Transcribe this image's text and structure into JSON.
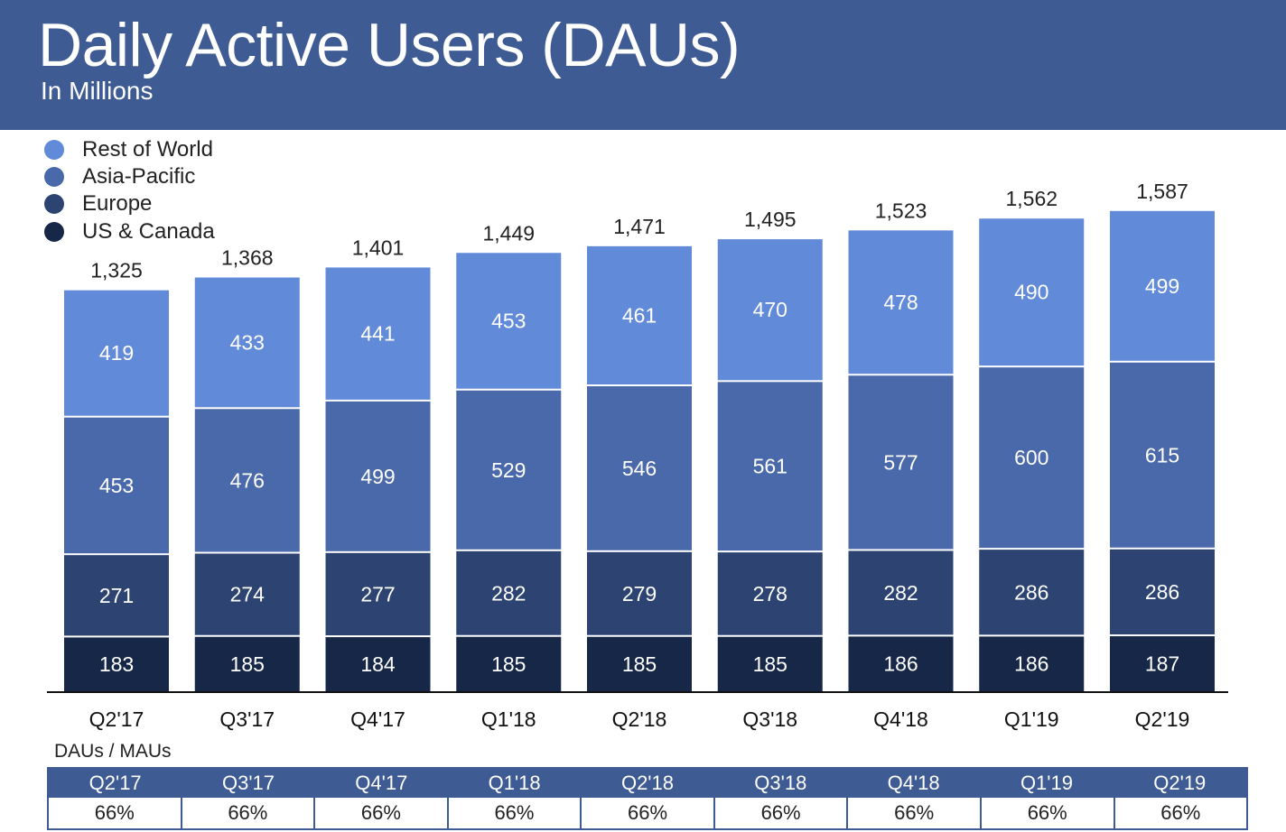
{
  "header": {
    "title": "Daily Active Users (DAUs)",
    "subtitle": "In Millions"
  },
  "colors": {
    "header_bg": "#3f5b93",
    "rest_of_world": "#618ad9",
    "asia_pacific": "#4a69aa",
    "europe": "#2d4372",
    "us_canada": "#172748"
  },
  "chart_data": {
    "type": "bar",
    "stacked": true,
    "title": "Daily Active Users (DAUs)",
    "subtitle": "In Millions",
    "legend_position": "top-left",
    "categories": [
      "Q2'17",
      "Q3'17",
      "Q4'17",
      "Q1'18",
      "Q2'18",
      "Q3'18",
      "Q4'18",
      "Q1'19",
      "Q2'19"
    ],
    "series": [
      {
        "name": "US & Canada",
        "color": "#172748",
        "values": [
          183,
          185,
          184,
          185,
          185,
          185,
          186,
          186,
          187
        ]
      },
      {
        "name": "Europe",
        "color": "#2d4372",
        "values": [
          271,
          274,
          277,
          282,
          279,
          278,
          282,
          286,
          286
        ]
      },
      {
        "name": "Asia-Pacific",
        "color": "#4a69aa",
        "values": [
          453,
          476,
          499,
          529,
          546,
          561,
          577,
          600,
          615
        ]
      },
      {
        "name": "Rest of World",
        "color": "#618ad9",
        "values": [
          419,
          433,
          441,
          453,
          461,
          470,
          478,
          490,
          499
        ]
      }
    ],
    "totals": [
      "1,325",
      "1,368",
      "1,401",
      "1,449",
      "1,471",
      "1,495",
      "1,523",
      "1,562",
      "1,587"
    ],
    "legend_order": [
      "Rest of World",
      "Asia-Pacific",
      "Europe",
      "US & Canada"
    ]
  },
  "mau_ratio": {
    "label": "DAUs / MAUs",
    "headers": [
      "Q2'17",
      "Q3'17",
      "Q4'17",
      "Q1'18",
      "Q2'18",
      "Q3'18",
      "Q4'18",
      "Q1'19",
      "Q2'19"
    ],
    "values": [
      "66%",
      "66%",
      "66%",
      "66%",
      "66%",
      "66%",
      "66%",
      "66%",
      "66%"
    ]
  }
}
